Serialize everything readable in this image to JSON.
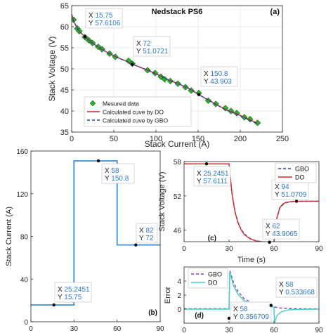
{
  "chart_data": [
    {
      "panel": "a",
      "type": "line",
      "title": "Nedstack PS6",
      "xlabel": "Stack Current (A)",
      "ylabel": "Stack Voltage (V)",
      "xlim": [
        0,
        250
      ],
      "ylim": [
        35,
        65
      ],
      "xticks": [
        "0",
        "50",
        "100",
        "150",
        "200",
        "250"
      ],
      "yticks": [
        "35",
        "40",
        "45",
        "50",
        "55",
        "60",
        "65"
      ],
      "grid": true,
      "legend_placement": "bottom-left",
      "legend": [
        "Mesured data",
        "Calculated cuve by DO",
        "Calculated cuve by GBO"
      ],
      "panel_label": "(a)",
      "series": [
        {
          "name": "Mesured data",
          "marker": "diamond",
          "color": "#22bb22",
          "x": [
            2.25,
            6.75,
            9,
            15.75,
            20.25,
            24.75,
            31.5,
            36,
            45,
            51.75,
            67.5,
            72,
            90,
            99,
            105.8,
            110.3,
            117,
            126,
            135,
            141.8,
            150.8,
            162,
            171,
            182.3,
            189,
            195.8,
            204.8,
            211.5,
            220.5
          ],
          "y": [
            61.64,
            59.57,
            58.94,
            57.54,
            56.8,
            56.13,
            55.23,
            54.66,
            53.61,
            52.86,
            51.91,
            51.22,
            49.66,
            49.0,
            48.15,
            47.52,
            47.1,
            46.48,
            45.66,
            44.85,
            44.24,
            42.45,
            41.66,
            40.68,
            40.01,
            39.51,
            38.52,
            38.07,
            37.18
          ]
        },
        {
          "name": "Calculated cuve by DO",
          "color": "#d62728",
          "x": [
            0,
            2.25,
            6.75,
            9,
            15.75,
            20.25,
            24.75,
            31.5,
            36,
            45,
            51.75,
            67.5,
            72,
            90,
            99,
            105.8,
            110.3,
            117,
            126,
            135,
            141.8,
            150.8,
            162,
            171,
            182.3,
            189,
            195.8,
            204.8,
            211.5,
            220.5
          ],
          "y": [
            63.0,
            61.4,
            59.6,
            58.9,
            57.6,
            56.8,
            56.1,
            55.2,
            54.6,
            53.6,
            52.9,
            51.6,
            51.1,
            49.7,
            48.9,
            48.3,
            47.8,
            47.2,
            46.5,
            45.7,
            45.0,
            43.9,
            42.6,
            41.6,
            40.4,
            39.9,
            39.3,
            38.5,
            37.9,
            37.1
          ]
        },
        {
          "name": "Calculated cuve by GBO",
          "color": "#2040c0",
          "dash": true,
          "x": [
            0,
            2.25,
            6.75,
            9,
            15.75,
            20.25,
            24.75,
            31.5,
            36,
            45,
            51.75,
            67.5,
            72,
            90,
            99,
            105.8,
            110.3,
            117,
            126,
            135,
            141.8,
            150.8,
            162,
            171,
            182.3,
            189,
            195.8,
            204.8,
            211.5,
            220.5
          ],
          "y": [
            62.9,
            61.3,
            59.6,
            58.9,
            57.6,
            56.8,
            56.1,
            55.2,
            54.6,
            53.6,
            52.9,
            51.6,
            51.1,
            49.7,
            48.9,
            48.3,
            47.8,
            47.2,
            46.5,
            45.7,
            45.0,
            43.9,
            42.6,
            41.6,
            40.3,
            39.8,
            39.2,
            38.4,
            37.8,
            36.9
          ]
        }
      ],
      "annotations": [
        {
          "x": 15.75,
          "y": 57.6106,
          "lines": [
            "X 15.75",
            "Y 57.6106"
          ]
        },
        {
          "x": 72,
          "y": 51.0721,
          "lines": [
            "X 72",
            "Y 51.0721"
          ]
        },
        {
          "x": 150.8,
          "y": 43.903,
          "lines": [
            "X 150.8",
            "Y 43.903"
          ]
        }
      ]
    },
    {
      "panel": "b",
      "type": "line",
      "xlabel": "",
      "ylabel": "Stack Current (A)",
      "xlim": [
        0,
        90
      ],
      "ylim": [
        0,
        160
      ],
      "xticks": [
        "0",
        "30",
        "60",
        "90"
      ],
      "yticks": [
        "0",
        "40",
        "80",
        "120",
        "160"
      ],
      "grid": false,
      "panel_label": "(b)",
      "series": [
        {
          "name": "",
          "color": "#3a8fd9",
          "x": [
            0,
            30,
            30,
            60,
            60,
            90
          ],
          "y": [
            15.75,
            15.75,
            150.8,
            150.8,
            72,
            72
          ]
        }
      ],
      "annotations": [
        {
          "x": 16,
          "y": 15.75,
          "lines": [
            "X 25.2451",
            "Y 15.75"
          ]
        },
        {
          "x": 47,
          "y": 150.8,
          "lines": [
            "X 58",
            "Y 150.8"
          ]
        },
        {
          "x": 73,
          "y": 72,
          "lines": [
            "X 82",
            "Y 72"
          ]
        }
      ]
    },
    {
      "panel": "c",
      "type": "line",
      "xlabel": "Time (s)",
      "ylabel": "Stack Voltage (V)",
      "xlim": [
        0,
        90
      ],
      "ylim": [
        44,
        58
      ],
      "xticks": [
        "0",
        "30",
        "60",
        "90"
      ],
      "yticks": [
        "46",
        "52",
        "58"
      ],
      "grid": false,
      "legend_placement": "top-right",
      "legend": [
        "GBO",
        "DO"
      ],
      "panel_label": "(c)",
      "series": [
        {
          "name": "GBO",
          "color": "#2040c0",
          "dash": true,
          "x": [
            0,
            30,
            32,
            34,
            36,
            38,
            40,
            44,
            48,
            52,
            56,
            60,
            62,
            64,
            66,
            68,
            72,
            78,
            84,
            90
          ],
          "y": [
            57.61,
            57.61,
            52.4,
            49.3,
            47.4,
            46.2,
            45.4,
            44.55,
            44.15,
            43.99,
            43.93,
            43.91,
            48.2,
            49.9,
            50.5,
            50.8,
            51.0,
            51.06,
            51.07,
            51.07
          ]
        },
        {
          "name": "DO",
          "color": "#d62728",
          "x": [
            0,
            30,
            32,
            34,
            36,
            38,
            40,
            44,
            48,
            52,
            56,
            60,
            62,
            64,
            66,
            68,
            72,
            78,
            84,
            90
          ],
          "y": [
            57.61,
            57.61,
            52.3,
            49.2,
            47.3,
            46.1,
            45.3,
            44.5,
            44.12,
            43.97,
            43.92,
            43.9,
            48.3,
            50.0,
            50.6,
            50.85,
            51.02,
            51.07,
            51.07,
            51.07
          ]
        }
      ],
      "annotations": [
        {
          "x": 15,
          "y": 57.6111,
          "lines": [
            "X 25.2451",
            "Y 57.6111"
          ]
        },
        {
          "x": 57,
          "y": 43.9065,
          "lines": [
            "X 62",
            "Y 43.9065"
          ]
        },
        {
          "x": 75,
          "y": 51.0709,
          "lines": [
            "X 94",
            "Y 51.0709"
          ]
        }
      ]
    },
    {
      "panel": "d",
      "type": "line",
      "xlabel": "",
      "ylabel": "Error",
      "xlim": [
        0,
        90
      ],
      "ylim": [
        -2,
        6
      ],
      "xticks": [
        "0",
        "30",
        "60",
        "90"
      ],
      "yticks": [
        "0",
        "2",
        "4"
      ],
      "grid": false,
      "legend_placement": "top-left",
      "legend": [
        "GBO",
        "DO"
      ],
      "panel_label": "(d)",
      "series": [
        {
          "name": "GBO",
          "color": "#8a3fb5",
          "dash": true,
          "x": [
            0,
            30,
            30.5,
            33,
            36,
            40,
            45,
            50,
            55,
            60,
            60.5,
            63,
            66,
            70,
            78,
            90
          ],
          "y": [
            0.05,
            0.05,
            5.5,
            3.8,
            2.5,
            1.5,
            0.9,
            0.6,
            0.5,
            0.45,
            0.3,
            0.2,
            0.12,
            0.08,
            0.05,
            0.04
          ]
        },
        {
          "name": "DO",
          "color": "#38d0c8",
          "x": [
            0,
            30,
            30.5,
            33,
            36,
            40,
            45,
            50,
            55,
            60,
            60.3,
            62,
            65,
            70,
            78,
            90
          ],
          "y": [
            0,
            0,
            5.3,
            3.3,
            2.1,
            1.2,
            0.7,
            0.45,
            0.36,
            0.3,
            -2.0,
            -0.9,
            -0.35,
            -0.1,
            -0.03,
            0
          ]
        }
      ],
      "annotations": [
        {
          "x": 30,
          "y": -1.3,
          "lines": [
            "X 58",
            "Y 0.356709"
          ]
        },
        {
          "x": 58,
          "y": 0.53,
          "lines": [
            "X 58",
            "Y 0.533668"
          ]
        }
      ]
    }
  ]
}
